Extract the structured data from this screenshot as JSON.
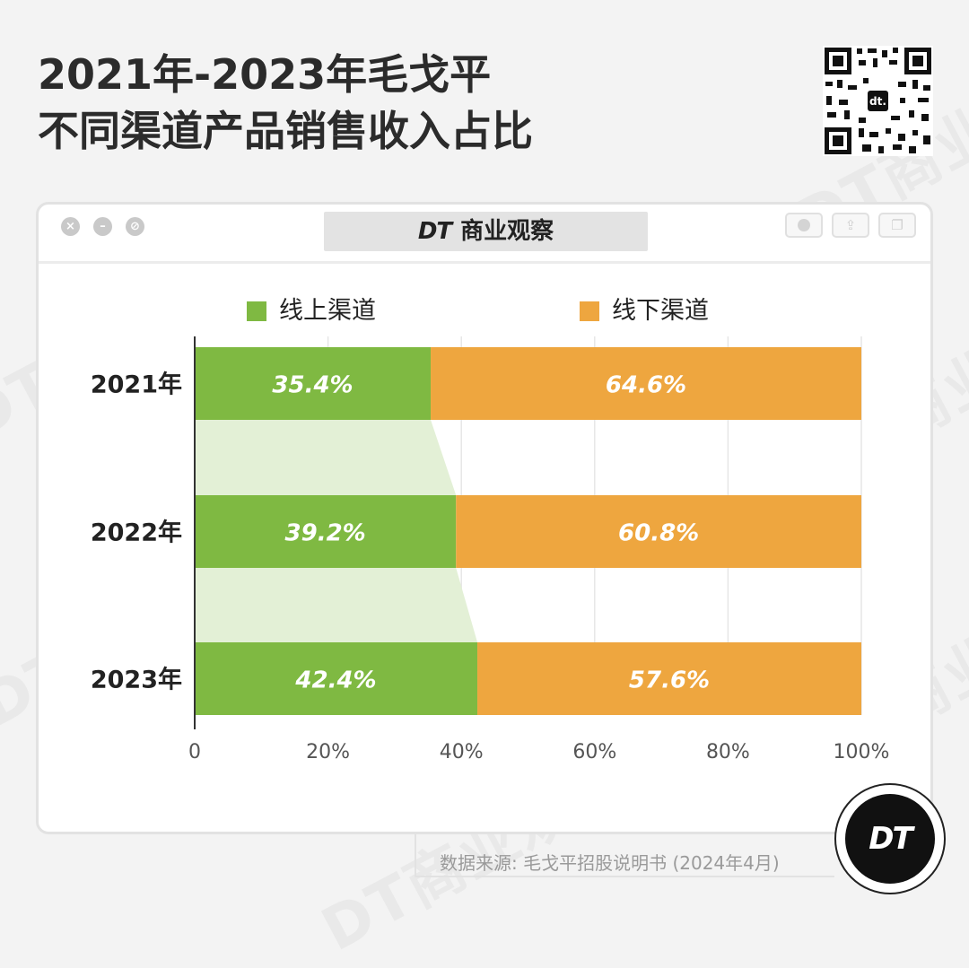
{
  "header": {
    "title_line1": "2021年-2023年毛戈平",
    "title_line2": "不同渠道产品销售收入占比"
  },
  "window": {
    "brand_mark": "DT",
    "brand_name": "商业观察"
  },
  "watermark": {
    "text": "DT商业观察"
  },
  "badge": {
    "text": "DT"
  },
  "qr_inner": "dt.",
  "source": "数据来源: 毛戈平招股说明书 (2024年4月)",
  "colors": {
    "online": "#7fb942",
    "offline": "#eea63f",
    "band": "#e3f0d6",
    "grid": "#e6e6e6"
  },
  "chart_data": {
    "type": "bar",
    "orientation": "horizontal",
    "stacked": true,
    "categories": [
      "2021年",
      "2022年",
      "2023年"
    ],
    "series": [
      {
        "name": "线上渠道",
        "values": [
          35.4,
          39.2,
          42.4
        ],
        "labels": [
          "35.4%",
          "39.2%",
          "42.4%"
        ]
      },
      {
        "name": "线下渠道",
        "values": [
          64.6,
          60.8,
          57.6
        ],
        "labels": [
          "64.6%",
          "60.8%",
          "57.6%"
        ]
      }
    ],
    "xlim": [
      0,
      100
    ],
    "x_ticks": [
      "0",
      "20%",
      "40%",
      "60%",
      "80%",
      "100%"
    ],
    "x_tick_values": [
      0,
      20,
      40,
      60,
      80,
      100
    ],
    "legend_position": "top",
    "grid": true
  }
}
